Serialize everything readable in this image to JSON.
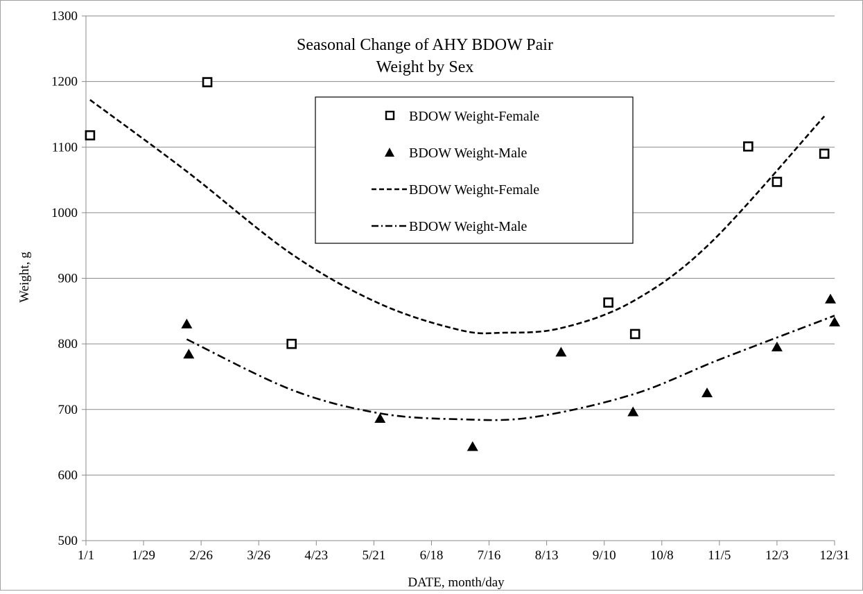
{
  "chart_data": {
    "type": "scatter",
    "title": [
      "Seasonal Change of AHY BDOW Pair",
      "Weight by Sex"
    ],
    "xlabel": "DATE, month/day",
    "ylabel": "Weight, g",
    "ylim": [
      500,
      1300
    ],
    "yticks": [
      500,
      600,
      700,
      800,
      900,
      1000,
      1100,
      1200,
      1300
    ],
    "xlim": [
      "1/1",
      "12/31"
    ],
    "xticks": [
      "1/1",
      "1/29",
      "2/26",
      "3/26",
      "4/23",
      "5/21",
      "6/18",
      "7/16",
      "8/13",
      "9/10",
      "10/8",
      "11/5",
      "12/3",
      "12/31"
    ],
    "grid": "horizontal",
    "legend_position": "top-center",
    "series": [
      {
        "name": "BDOW Weight-Female",
        "kind": "marker",
        "marker": "open-square",
        "x": [
          "1/3",
          "3/1",
          "4/11",
          "9/12",
          "9/25",
          "11/19",
          "12/3",
          "12/26"
        ],
        "y": [
          1118,
          1199,
          800,
          863,
          815,
          1101,
          1047,
          1090
        ]
      },
      {
        "name": "BDOW Weight-Male",
        "kind": "marker",
        "marker": "filled-triangle",
        "x": [
          "2/19",
          "2/20",
          "5/24",
          "7/8",
          "8/20",
          "9/24",
          "10/30",
          "12/3",
          "12/29",
          "12/31"
        ],
        "y": [
          830,
          784,
          686,
          643,
          787,
          696,
          725,
          795,
          868,
          833
        ]
      },
      {
        "name": "BDOW Weight-Female",
        "kind": "trendline",
        "dash": "dashed",
        "x": [
          "1/3",
          "2/19",
          "4/11",
          "5/24",
          "7/2",
          "7/23",
          "8/20",
          "9/24",
          "11/1",
          "12/26"
        ],
        "y": [
          1172,
          1063,
          937,
          861,
          821,
          817,
          824,
          865,
          955,
          1147
        ]
      },
      {
        "name": "BDOW Weight-Male",
        "kind": "trendline",
        "dash": "dash-dot",
        "x": [
          "2/19",
          "4/11",
          "5/24",
          "7/2",
          "8/6",
          "9/24",
          "11/5",
          "12/31"
        ],
        "y": [
          807,
          730,
          694,
          685,
          688,
          723,
          776,
          843
        ]
      }
    ],
    "colors": {
      "series": "#000000",
      "grid": "#8a8a8a",
      "background": "#ffffff"
    }
  }
}
